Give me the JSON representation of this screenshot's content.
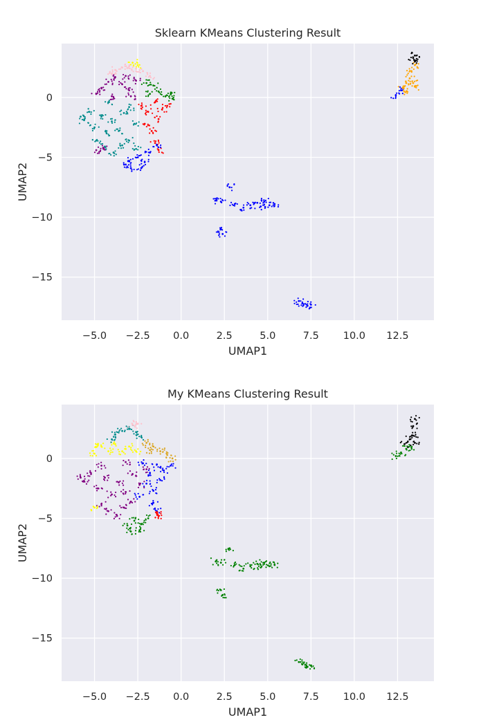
{
  "chart_data": [
    {
      "type": "scatter",
      "title": "Sklearn KMeans Clustering Result",
      "xlabel": "UMAP1",
      "ylabel": "UMAP2",
      "xlim": [
        -6.9,
        14.6
      ],
      "ylim": [
        -18.6,
        4.5
      ],
      "xticks": [
        -5.0,
        -2.5,
        0.0,
        2.5,
        5.0,
        7.5,
        10.0,
        12.5
      ],
      "xtick_labels": [
        "−5.0",
        "−2.5",
        "0.0",
        "2.5",
        "5.0",
        "7.5",
        "10.0",
        "12.5"
      ],
      "yticks": [
        0,
        -5,
        -10,
        -15
      ],
      "ytick_labels": [
        "0",
        "−5",
        "−10",
        "−15"
      ],
      "grid": true,
      "background": "#eaeaf2",
      "series": [
        {
          "color": "#008b8b",
          "points": [
            [
              -5.6,
              -1.9
            ],
            [
              -5.3,
              -1.2
            ],
            [
              -5.0,
              -2.5
            ],
            [
              -4.6,
              -1.6
            ],
            [
              -4.3,
              -3.0
            ],
            [
              -4.0,
              -2.0
            ],
            [
              -3.6,
              -2.8
            ],
            [
              -3.3,
              -1.3
            ],
            [
              -3.0,
              -0.8
            ],
            [
              -2.7,
              -2.2
            ],
            [
              -4.9,
              -3.6
            ],
            [
              -4.4,
              -4.1
            ],
            [
              -3.9,
              -4.6
            ],
            [
              -3.4,
              -4.0
            ],
            [
              -3.0,
              -3.6
            ],
            [
              -2.6,
              -4.3
            ],
            [
              -5.8,
              -1.6
            ],
            [
              -4.2,
              -0.4
            ]
          ]
        },
        {
          "color": "#800080",
          "points": [
            [
              -4.6,
              0.8
            ],
            [
              -4.2,
              1.3
            ],
            [
              -3.8,
              1.7
            ],
            [
              -3.4,
              1.1
            ],
            [
              -3.0,
              0.6
            ],
            [
              -2.6,
              1.4
            ],
            [
              -4.9,
              0.3
            ],
            [
              -4.0,
              0.1
            ],
            [
              -3.2,
              1.8
            ],
            [
              -2.9,
              0.1
            ],
            [
              -4.5,
              -4.2
            ],
            [
              -4.9,
              -4.4
            ]
          ]
        },
        {
          "color": "#ff0000",
          "points": [
            [
              -2.3,
              -0.7
            ],
            [
              -1.9,
              -1.2
            ],
            [
              -1.5,
              -0.4
            ],
            [
              -1.1,
              -1.0
            ],
            [
              -2.1,
              -2.2
            ],
            [
              -1.7,
              -2.8
            ],
            [
              -1.3,
              -1.8
            ],
            [
              -0.8,
              -0.7
            ],
            [
              -1.5,
              -3.8
            ],
            [
              -1.3,
              -4.4
            ]
          ]
        },
        {
          "color": "#008000",
          "points": [
            [
              -2.0,
              1.2
            ],
            [
              -1.6,
              1.0
            ],
            [
              -1.3,
              0.5
            ],
            [
              -0.9,
              0.1
            ],
            [
              -0.5,
              -0.1
            ],
            [
              -0.6,
              0.3
            ],
            [
              -1.8,
              0.3
            ]
          ]
        },
        {
          "color": "#0000ff",
          "points": [
            [
              -3.0,
              -5.3
            ],
            [
              -2.5,
              -5.0
            ],
            [
              -2.1,
              -5.4
            ],
            [
              -2.3,
              -5.9
            ],
            [
              -1.8,
              -4.6
            ],
            [
              -1.4,
              -4.0
            ],
            [
              -3.2,
              -5.6
            ],
            [
              -2.9,
              -5.9
            ],
            [
              2.0,
              -8.6
            ],
            [
              2.3,
              -8.7
            ],
            [
              2.8,
              -7.5
            ],
            [
              3.1,
              -8.9
            ],
            [
              3.6,
              -9.2
            ],
            [
              4.0,
              -9.0
            ],
            [
              4.4,
              -8.8
            ],
            [
              4.8,
              -8.7
            ],
            [
              5.1,
              -9.0
            ],
            [
              5.4,
              -8.9
            ],
            [
              4.6,
              -9.1
            ],
            [
              2.3,
              -11.0
            ],
            [
              2.4,
              -11.4
            ],
            [
              6.8,
              -17.0
            ],
            [
              7.0,
              -17.2
            ],
            [
              7.3,
              -17.4
            ],
            [
              7.5,
              -17.3
            ],
            [
              12.4,
              0.2
            ],
            [
              12.7,
              0.6
            ]
          ]
        },
        {
          "color": "#ffc0cb",
          "points": [
            [
              -3.8,
              2.3
            ],
            [
              -3.4,
              2.5
            ],
            [
              -3.0,
              2.6
            ],
            [
              -2.6,
              2.4
            ],
            [
              -2.2,
              2.2
            ],
            [
              -1.8,
              1.8
            ],
            [
              -4.0,
              2.0
            ]
          ]
        },
        {
          "color": "#ffff00",
          "points": [
            [
              -2.8,
              2.9
            ],
            [
              -2.5,
              2.7
            ]
          ]
        },
        {
          "color": "#ffa500",
          "points": [
            [
              12.8,
              0.8
            ],
            [
              13.0,
              1.2
            ],
            [
              13.2,
              1.6
            ],
            [
              13.4,
              1.2
            ],
            [
              13.3,
              2.2
            ],
            [
              13.5,
              2.7
            ],
            [
              13.0,
              0.5
            ],
            [
              13.5,
              0.9
            ]
          ]
        },
        {
          "color": "#000000",
          "points": [
            [
              13.5,
              3.0
            ],
            [
              13.4,
              3.3
            ],
            [
              13.5,
              3.5
            ]
          ]
        }
      ]
    },
    {
      "type": "scatter",
      "title": "My KMeans Clustering Result",
      "xlabel": "UMAP1",
      "ylabel": "UMAP2",
      "xlim": [
        -6.9,
        14.6
      ],
      "ylim": [
        -18.6,
        4.5
      ],
      "xticks": [
        -5.0,
        -2.5,
        0.0,
        2.5,
        5.0,
        7.5,
        10.0,
        12.5
      ],
      "xtick_labels": [
        "−5.0",
        "−2.5",
        "0.0",
        "2.5",
        "5.0",
        "7.5",
        "10.0",
        "12.5"
      ],
      "yticks": [
        0,
        -5,
        -10,
        -15
      ],
      "ytick_labels": [
        "0",
        "−5",
        "−10",
        "−15"
      ],
      "grid": true,
      "background": "#eaeaf2",
      "series": [
        {
          "color": "#800080",
          "points": [
            [
              -5.6,
              -1.9
            ],
            [
              -5.2,
              -1.3
            ],
            [
              -4.8,
              -2.5
            ],
            [
              -4.4,
              -1.6
            ],
            [
              -4.0,
              -3.0
            ],
            [
              -3.6,
              -2.0
            ],
            [
              -3.2,
              -2.8
            ],
            [
              -2.8,
              -1.3
            ],
            [
              -2.4,
              -2.2
            ],
            [
              -2.0,
              -0.9
            ],
            [
              -4.6,
              -3.8
            ],
            [
              -4.2,
              -4.4
            ],
            [
              -3.7,
              -4.8
            ],
            [
              -3.3,
              -4.1
            ],
            [
              -2.9,
              -3.6
            ],
            [
              -5.8,
              -1.6
            ],
            [
              -4.6,
              -0.6
            ],
            [
              -3.2,
              -0.3
            ]
          ]
        },
        {
          "color": "#ffff00",
          "points": [
            [
              -5.0,
              0.4
            ],
            [
              -4.6,
              1.0
            ],
            [
              -4.2,
              0.6
            ],
            [
              -3.8,
              1.2
            ],
            [
              -3.4,
              0.6
            ],
            [
              -3.0,
              1.0
            ],
            [
              -4.8,
              1.2
            ],
            [
              -2.6,
              0.6
            ],
            [
              -5.0,
              -4.1
            ]
          ]
        },
        {
          "color": "#008b8b",
          "points": [
            [
              -3.8,
              2.0
            ],
            [
              -3.4,
              2.3
            ],
            [
              -3.0,
              2.5
            ],
            [
              -2.6,
              2.2
            ],
            [
              -2.3,
              1.8
            ],
            [
              -4.0,
              1.6
            ]
          ]
        },
        {
          "color": "#daa520",
          "points": [
            [
              -2.0,
              1.3
            ],
            [
              -1.6,
              1.0
            ],
            [
              -1.2,
              0.6
            ],
            [
              -0.8,
              0.3
            ],
            [
              -0.5,
              0.0
            ],
            [
              -1.8,
              0.7
            ]
          ]
        },
        {
          "color": "#0000ff",
          "points": [
            [
              -2.2,
              -0.4
            ],
            [
              -1.8,
              -1.2
            ],
            [
              -1.4,
              -0.5
            ],
            [
              -1.0,
              -1.0
            ],
            [
              -0.6,
              -0.6
            ],
            [
              -2.0,
              -2.1
            ],
            [
              -1.6,
              -2.7
            ],
            [
              -1.2,
              -1.8
            ],
            [
              -1.6,
              -3.7
            ],
            [
              -1.4,
              -4.4
            ],
            [
              -2.4,
              -3.2
            ]
          ]
        },
        {
          "color": "#ff0000",
          "points": [
            [
              -1.3,
              -4.8
            ],
            [
              -1.4,
              -4.6
            ]
          ]
        },
        {
          "color": "#ffc0cb",
          "points": [
            [
              -2.8,
              2.8
            ],
            [
              -2.5,
              2.9
            ]
          ]
        },
        {
          "color": "#008000",
          "points": [
            [
              -3.1,
              -5.6
            ],
            [
              -2.7,
              -5.2
            ],
            [
              -2.3,
              -5.5
            ],
            [
              -2.4,
              -6.0
            ],
            [
              -1.9,
              -5.0
            ],
            [
              -2.9,
              -6.1
            ],
            [
              2.0,
              -8.6
            ],
            [
              2.3,
              -8.7
            ],
            [
              2.8,
              -7.5
            ],
            [
              3.1,
              -8.9
            ],
            [
              3.6,
              -9.2
            ],
            [
              4.0,
              -9.0
            ],
            [
              4.4,
              -8.8
            ],
            [
              4.8,
              -8.7
            ],
            [
              5.1,
              -9.0
            ],
            [
              5.4,
              -8.9
            ],
            [
              4.6,
              -9.1
            ],
            [
              2.3,
              -11.0
            ],
            [
              2.4,
              -11.4
            ],
            [
              6.8,
              -17.0
            ],
            [
              7.0,
              -17.2
            ],
            [
              7.3,
              -17.4
            ],
            [
              7.5,
              -17.3
            ],
            [
              12.4,
              0.2
            ],
            [
              12.7,
              0.5
            ],
            [
              13.0,
              0.8
            ],
            [
              13.3,
              0.9
            ]
          ]
        },
        {
          "color": "#000000",
          "points": [
            [
              12.9,
              1.2
            ],
            [
              13.2,
              1.6
            ],
            [
              13.4,
              1.9
            ],
            [
              13.5,
              1.3
            ],
            [
              13.4,
              2.7
            ],
            [
              13.5,
              3.3
            ]
          ]
        }
      ]
    }
  ]
}
